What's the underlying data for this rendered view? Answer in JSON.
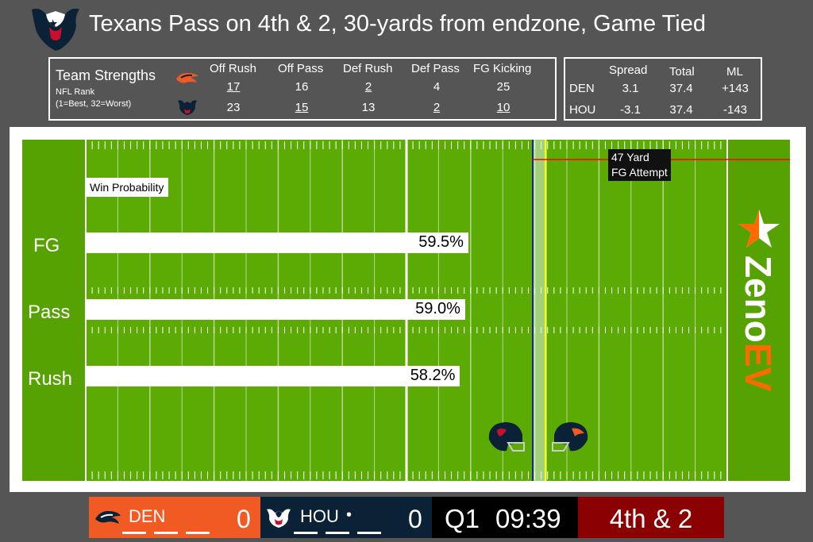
{
  "header": {
    "title": "Texans Pass on 4th & 2, 30-yards from endzone, Game Tied"
  },
  "strengths": {
    "title": "Team Strengths",
    "subtitle": "NFL Rank",
    "note": "(1=Best, 32=Worst)",
    "columns": [
      "Off Rush",
      "Off Pass",
      "Def Rush",
      "Def Pass",
      "FG Kicking"
    ],
    "den": [
      "17",
      "16",
      "2",
      "4",
      "25"
    ],
    "hou": [
      "23",
      "15",
      "13",
      "2",
      "10"
    ]
  },
  "odds": {
    "columns": [
      "Spread",
      "Total",
      "ML"
    ],
    "rows": [
      {
        "team": "DEN",
        "spread": "3.1",
        "total": "37.4",
        "ml": "+143"
      },
      {
        "team": "HOU",
        "spread": "-3.1",
        "total": "37.4",
        "ml": "-143"
      }
    ]
  },
  "field": {
    "win_prob_label": "Win Probability",
    "fg_note_line1": "47 Yard",
    "fg_note_line2": "FG Attempt",
    "brand_top": "Zeno",
    "brand_bottom": "EV"
  },
  "chart_data": {
    "type": "bar",
    "title": "Win Probability",
    "categories": [
      "FG",
      "Pass",
      "Rush"
    ],
    "values": [
      59.5,
      59.0,
      58.2
    ],
    "value_labels": [
      "59.5%",
      "59.0%",
      "58.2%"
    ],
    "unit": "%",
    "orientation": "horizontal"
  },
  "scoreboard": {
    "den": {
      "name": "DEN",
      "score": "0"
    },
    "hou": {
      "name": "HOU",
      "score": "0",
      "possession": "•"
    },
    "quarter": "Q1",
    "clock": "09:39",
    "down": "4th & 2"
  },
  "colors": {
    "field_green": "#5caa04",
    "den_orange": "#f15a22",
    "hou_navy": "#0b2236",
    "down_red": "#8b0000",
    "fg_line_red": "#ff0000",
    "first_down_yellow": "#ffff00",
    "scrimmage_blue": "#1a2a8a",
    "brand_orange": "#ff6a00"
  }
}
